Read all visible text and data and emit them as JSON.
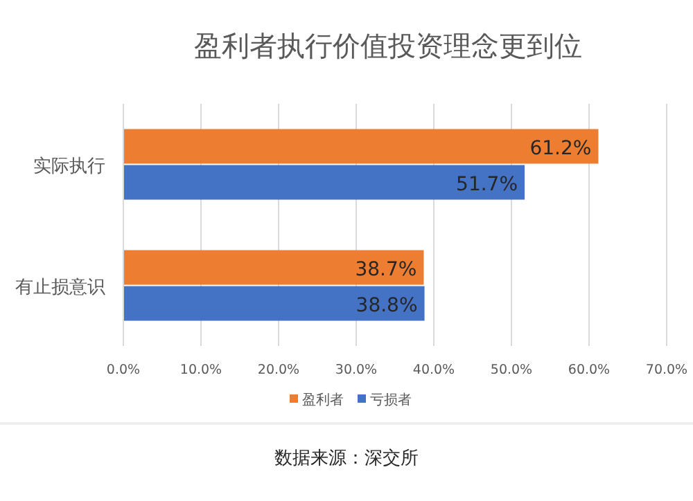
{
  "chart_data": {
    "type": "bar",
    "orientation": "horizontal",
    "title": "盈利者执行价值投资理念更到位",
    "categories": [
      "实际执行",
      "有止损意识"
    ],
    "series": [
      {
        "name": "盈利者",
        "color": "#ed7d31",
        "values": [
          61.2,
          38.7
        ],
        "value_labels": [
          "61.2%",
          "38.7%"
        ]
      },
      {
        "name": "亏损者",
        "color": "#4472c4",
        "values": [
          51.7,
          38.8
        ],
        "value_labels": [
          "51.7%",
          "38.8%"
        ]
      }
    ],
    "xlim": [
      0,
      70
    ],
    "xticks": [
      {
        "value": 0,
        "label": "0.0%"
      },
      {
        "value": 10,
        "label": "10.0%"
      },
      {
        "value": 20,
        "label": "20.0%"
      },
      {
        "value": 30,
        "label": "30.0%"
      },
      {
        "value": 40,
        "label": "40.0%"
      },
      {
        "value": 50,
        "label": "50.0%"
      },
      {
        "value": 60,
        "label": "60.0%"
      },
      {
        "value": 70,
        "label": "70.0%"
      }
    ],
    "grid": "x",
    "legend": "bottom",
    "annotations": [
      "数据来源：深交所"
    ]
  }
}
